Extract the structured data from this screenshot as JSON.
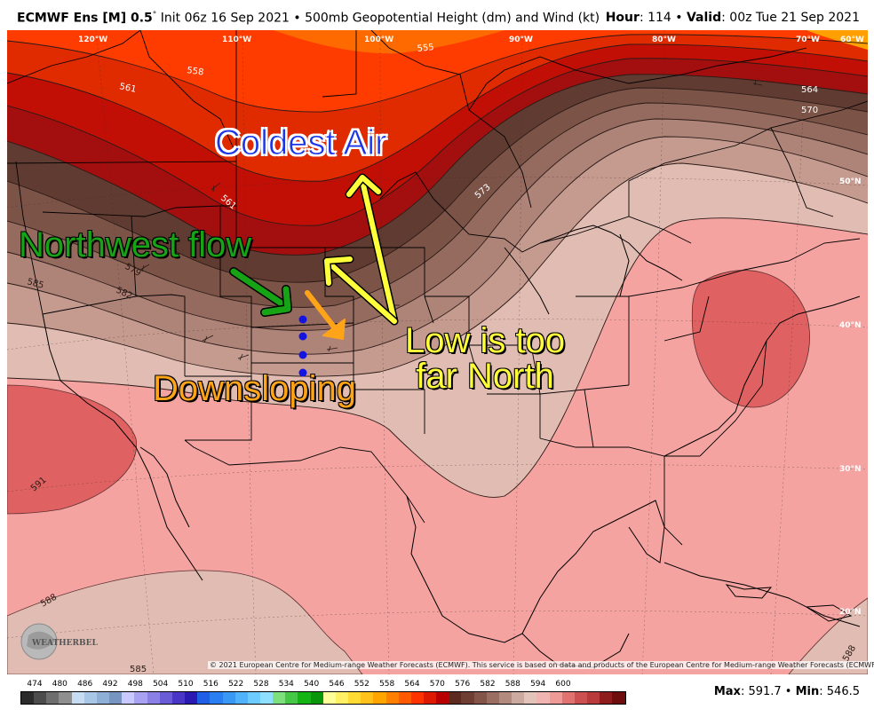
{
  "header": {
    "model": "ECMWF Ens [M] 0.5",
    "degree": "°",
    "init": " Init 06z 16 Sep 2021 • 500mb Geopotential Height (dm) and Wind (kt)",
    "hour_label": "Hour",
    "hour_value": ": 114 • ",
    "valid_label": "Valid",
    "valid_value": ": 00z Tue 21 Sep 2021"
  },
  "lon_labels": [
    "120°W",
    "110°W",
    "100°W",
    "90°W",
    "80°W",
    "70°W",
    "60°W"
  ],
  "lat_labels": [
    "50°N",
    "40°N",
    "30°N",
    "20°N"
  ],
  "contour_labels": [
    "558",
    "561",
    "555",
    "564",
    "570",
    "561",
    "573",
    "579",
    "582",
    "585",
    "591",
    "588",
    "585",
    "588"
  ],
  "annotations": {
    "coldest": "Coldest Air",
    "northwest": "Northwest flow",
    "low_line1": "Low is too",
    "low_line2": "far North",
    "downsloping": "Downsloping"
  },
  "arrow_colors": {
    "yellow": "#ffff3a",
    "green": "#16a316",
    "orange": "#ffa418",
    "dots": "#1414e0"
  },
  "copyright": "© 2021 European Centre for Medium-range Weather Forecasts (ECMWF). This service is based on data and products of the European Centre for Medium-range Weather Forecasts (ECMWF).",
  "logo_text": "WEATHERBELL",
  "colorbar": {
    "labels": [
      "474",
      "480",
      "486",
      "492",
      "498",
      "504",
      "510",
      "516",
      "522",
      "528",
      "534",
      "540",
      "546",
      "552",
      "558",
      "564",
      "570",
      "576",
      "582",
      "588",
      "594",
      "600"
    ],
    "colors": [
      "#2b2b2b",
      "#4c4c4c",
      "#6e6e6e",
      "#8f8f8f",
      "#c6dcf2",
      "#a8c7e6",
      "#8fb0d6",
      "#7895c2",
      "#c9c9ff",
      "#a9a2f2",
      "#8a80e6",
      "#6a5bd6",
      "#4a36c6",
      "#2a1ab2",
      "#1e5fe6",
      "#2a7ff0",
      "#3a98f5",
      "#50b2fa",
      "#6ccbff",
      "#8fe0ff",
      "#7de07d",
      "#45c845",
      "#14b414",
      "#0a960a",
      "#ffff99",
      "#fff066",
      "#ffdb33",
      "#ffc21a",
      "#ffa500",
      "#ff8000",
      "#ff5a00",
      "#ff3300",
      "#dd1a00",
      "#b80000",
      "#5c2a1f",
      "#6e3e33",
      "#835548",
      "#9a6e61",
      "#b38a7e",
      "#ccaaa0",
      "#e2c4ba",
      "#f0b5b0",
      "#ee9a96",
      "#e0736f",
      "#cc5050",
      "#b83a3a",
      "#8f1c1c",
      "#6e0d0d"
    ]
  },
  "maxmin": {
    "max_label": "Max",
    "max_value": ": 591.7 • ",
    "min_label": "Min",
    "min_value": ": 546.5"
  }
}
